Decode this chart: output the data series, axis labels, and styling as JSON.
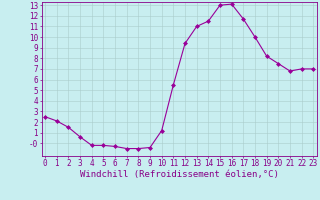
{
  "x": [
    0,
    1,
    2,
    3,
    4,
    5,
    6,
    7,
    8,
    9,
    10,
    11,
    12,
    13,
    14,
    15,
    16,
    17,
    18,
    19,
    20,
    21,
    22,
    23
  ],
  "y": [
    2.5,
    2.1,
    1.5,
    0.6,
    -0.2,
    -0.2,
    -0.3,
    -0.5,
    -0.5,
    -0.4,
    1.2,
    5.5,
    9.4,
    11.0,
    11.5,
    13.0,
    13.1,
    11.7,
    10.0,
    8.2,
    7.5,
    6.8,
    7.0,
    7.0
  ],
  "line_color": "#990099",
  "marker": "D",
  "marker_size": 2,
  "bg_color": "#c8eef0",
  "grid_color": "#aacccc",
  "xlabel": "Windchill (Refroidissement éolien,°C)",
  "ylim_min": -1,
  "ylim_max": 13,
  "xlim_min": 0,
  "xlim_max": 23,
  "yticks": [
    0,
    1,
    2,
    3,
    4,
    5,
    6,
    7,
    8,
    9,
    10,
    11,
    12,
    13
  ],
  "ytick_labels": [
    "-0",
    "1",
    "2",
    "3",
    "4",
    "5",
    "6",
    "7",
    "8",
    "9",
    "10",
    "11",
    "12",
    "13"
  ],
  "xticks": [
    0,
    1,
    2,
    3,
    4,
    5,
    6,
    7,
    8,
    9,
    10,
    11,
    12,
    13,
    14,
    15,
    16,
    17,
    18,
    19,
    20,
    21,
    22,
    23
  ],
  "tick_color": "#880088",
  "label_color": "#880088",
  "spine_color": "#880088",
  "tick_fontsize": 5.5,
  "xlabel_fontsize": 6.5
}
